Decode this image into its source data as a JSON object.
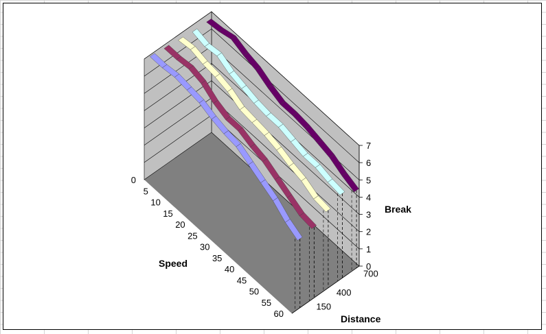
{
  "chart_data": {
    "type": "3d-line",
    "title": "",
    "x_axis": {
      "label": "Speed",
      "ticks": [
        "0",
        "5",
        "10",
        "15",
        "20",
        "25",
        "30",
        "35",
        "40",
        "45",
        "50",
        "55",
        "60"
      ],
      "range": [
        0,
        60
      ]
    },
    "z_axis": {
      "label": "Break",
      "ticks": [
        "0",
        "1",
        "2",
        "3",
        "4",
        "5",
        "6",
        "7"
      ],
      "range": [
        0,
        7
      ]
    },
    "depth_axis": {
      "label": "Distance",
      "ticks": [
        "150",
        "400",
        "700"
      ]
    },
    "categories": [
      0,
      5,
      10,
      15,
      20,
      25,
      30,
      35,
      40,
      45,
      50,
      55,
      60
    ],
    "series": [
      {
        "color": "#9999ff",
        "values": [
          6.9,
          6.9,
          7.0,
          6.9,
          6.8,
          6.5,
          6.3,
          6.2,
          5.8,
          5.4,
          5.0,
          4.4,
          4.0
        ]
      },
      {
        "color": "#993366",
        "values": [
          6.8,
          6.8,
          6.9,
          6.7,
          6.2,
          5.9,
          5.9,
          5.6,
          5.4,
          5.0,
          4.6,
          4.2,
          4.1
        ]
      },
      {
        "color": "#ffffcc",
        "values": [
          6.7,
          6.8,
          6.6,
          6.5,
          6.3,
          5.9,
          5.8,
          5.7,
          5.5,
          5.2,
          5.0,
          4.6,
          4.5
        ]
      },
      {
        "color": "#ccffff",
        "values": [
          6.6,
          6.4,
          6.5,
          6.1,
          5.9,
          5.7,
          5.6,
          5.6,
          5.4,
          5.2,
          5.2,
          5.0,
          4.9
        ]
      },
      {
        "color": "#660066",
        "values": [
          6.6,
          6.7,
          6.9,
          6.6,
          6.4,
          6.0,
          5.7,
          5.7,
          5.6,
          5.4,
          5.2,
          4.8,
          4.5
        ]
      }
    ],
    "colors": {
      "back_wall": "#c0c0c0",
      "side_wall": "#c0c0c0",
      "floor": "#808080",
      "grid": "#000000"
    }
  }
}
